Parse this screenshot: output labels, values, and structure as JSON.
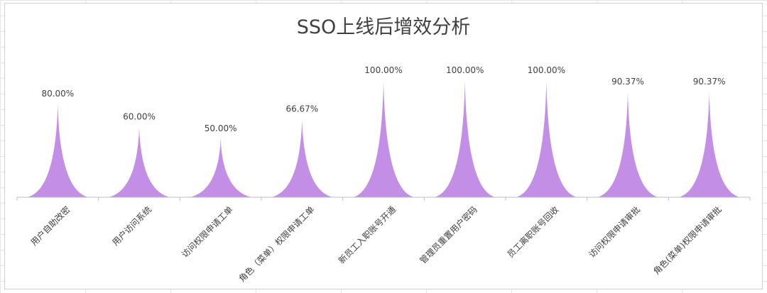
{
  "chart_data": {
    "type": "bar",
    "bar_shape": "pointed-peak",
    "title": "SSO上线后增效分析",
    "xlabel": "",
    "ylabel": "",
    "ylim": [
      0,
      100
    ],
    "grid": false,
    "legend": "none",
    "categories": [
      "用户自助改密",
      "用户访问系统",
      "访问权限申请工单",
      "角色（菜单）权限申请工单",
      "新员工入职账号开通",
      "管理员重置用户密码",
      "员工离职账号回收",
      "访问权限申请审批",
      "角色(菜单)权限申请审批"
    ],
    "values": [
      80.0,
      60.0,
      50.0,
      66.67,
      100.0,
      100.0,
      100.0,
      90.37,
      90.37
    ],
    "data_labels": [
      "80.00%",
      "60.00%",
      "50.00%",
      "66.67%",
      "100.00%",
      "100.00%",
      "100.00%",
      "90.37%",
      "90.37%"
    ],
    "series_color": "#c38ee6",
    "axis_color": "#bfbfbf",
    "text_color": "#404040"
  }
}
